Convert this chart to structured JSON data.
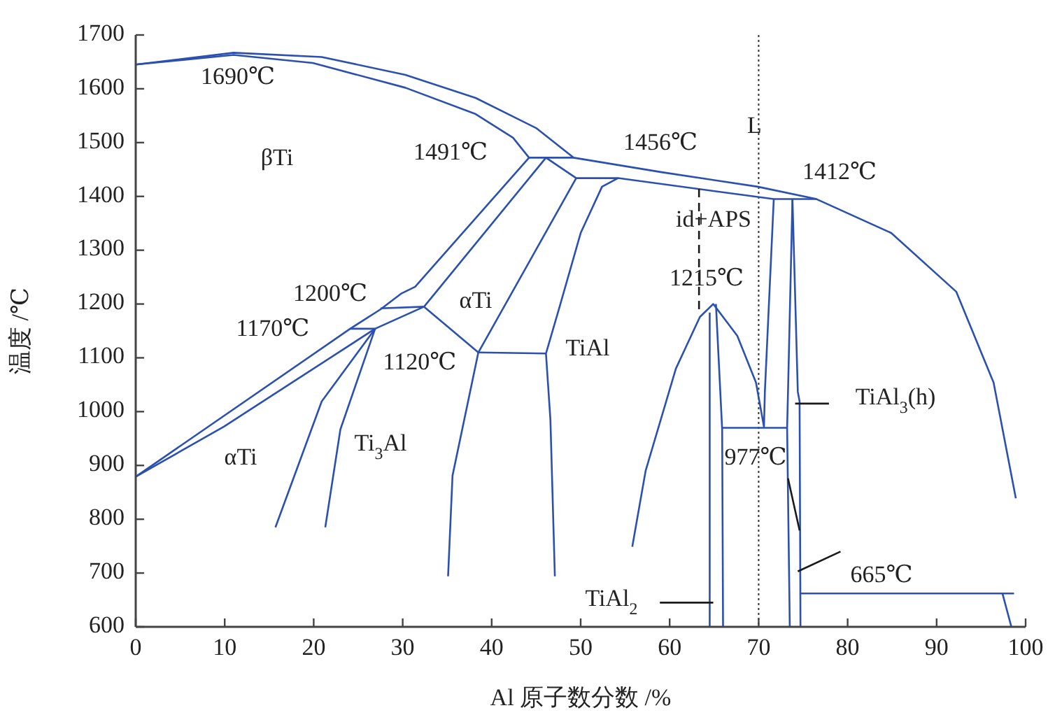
{
  "chart_data": {
    "type": "line",
    "xlabel": "Al 原子数分数 /%",
    "ylabel": "温度 /℃",
    "xlim": [
      0,
      100
    ],
    "ylim": [
      600,
      1700
    ],
    "xticks": [
      0,
      10,
      20,
      30,
      40,
      50,
      60,
      70,
      80,
      90,
      100
    ],
    "yticks": [
      600,
      700,
      800,
      900,
      1000,
      1100,
      1200,
      1300,
      1400,
      1500,
      1600,
      1700
    ],
    "grid": false,
    "line_style": "solid",
    "series": [
      {
        "color": "#2b50b0",
        "x": [
          0,
          11,
          20.9,
          30.3,
          38.2,
          45.0,
          49.2,
          59.1,
          69.9,
          76.5,
          84.9,
          92.2,
          96.4,
          98.9
        ],
        "values": [
          1645,
          1667,
          1659,
          1626,
          1583,
          1527,
          1472,
          1445,
          1418,
          1395,
          1332,
          1223,
          1054,
          839
        ]
      },
      {
        "color": "#2b50b0",
        "x": [
          0,
          11,
          19.9,
          30.3,
          38.2,
          42.4,
          44.2,
          49.2
        ],
        "values": [
          1645,
          1663,
          1648,
          1602,
          1553,
          1509,
          1472,
          1472
        ]
      },
      {
        "color": "#2b50b0",
        "x": [
          46.1,
          49.5,
          54.2,
          71.7,
          76.5
        ],
        "values": [
          1472,
          1434,
          1434,
          1395,
          1395
        ]
      },
      {
        "color": "#2b50b0",
        "x": [
          54.2,
          52.4,
          50.0,
          47.6,
          46.1,
          46.6,
          47.1
        ],
        "values": [
          1434,
          1418,
          1332,
          1193,
          1108,
          985,
          694
        ]
      },
      {
        "color": "#2b50b0",
        "x": [
          44.2,
          31.4,
          29.8,
          27.5,
          24.1,
          0
        ],
        "values": [
          1472,
          1232,
          1219,
          1190,
          1154,
          879
        ]
      },
      {
        "color": "#2b50b0",
        "x": [
          46.1,
          32.4,
          26.9,
          9.9,
          0
        ],
        "values": [
          1472,
          1195,
          1154,
          972,
          879
        ]
      },
      {
        "color": "#2b50b0",
        "x": [
          27.5,
          32.4
        ],
        "values": [
          1192,
          1195
        ]
      },
      {
        "color": "#2b50b0",
        "x": [
          24.1,
          26.9
        ],
        "values": [
          1154,
          1154
        ]
      },
      {
        "color": "#2b50b0",
        "x": [
          32.4,
          38.5
        ],
        "values": [
          1195,
          1110
        ]
      },
      {
        "color": "#2b50b0",
        "x": [
          49.5,
          38.5,
          35.6,
          35.1
        ],
        "values": [
          1434,
          1110,
          881,
          694
        ]
      },
      {
        "color": "#2b50b0",
        "x": [
          38.5,
          46.1
        ],
        "values": [
          1110,
          1108
        ]
      },
      {
        "color": "#2b50b0",
        "x": [
          26.9,
          20.9,
          15.7
        ],
        "values": [
          1154,
          1019,
          785
        ]
      },
      {
        "color": "#2b50b0",
        "x": [
          26.9,
          23.0,
          21.3
        ],
        "values": [
          1154,
          967,
          785
        ]
      },
      {
        "color": "#2b50b0",
        "x": [
          55.8,
          57.3,
          60.7,
          63.4,
          64.9,
          67.6,
          69.7,
          70.6,
          70.7,
          71.7
        ],
        "values": [
          749,
          890,
          1080,
          1176,
          1200,
          1141,
          1054,
          972,
          1037,
          1395
        ]
      },
      {
        "color": "#2b50b0",
        "x": [
          64.5,
          64.5
        ],
        "values": [
          1184,
          600
        ]
      },
      {
        "color": "#2b50b0",
        "x": [
          65.2,
          65.9,
          66.0
        ],
        "values": [
          1200,
          967,
          600
        ]
      },
      {
        "color": "#2b50b0",
        "x": [
          65.9,
          73.2
        ],
        "values": [
          970,
          970
        ]
      },
      {
        "color": "#2b50b0",
        "x": [
          73.8,
          73.3,
          73.2,
          73.5
        ],
        "values": [
          1395,
          1037,
          970,
          600
        ]
      },
      {
        "color": "#2b50b0",
        "x": [
          73.8,
          74.4,
          74.6,
          74.7
        ],
        "values": [
          1395,
          1037,
          1019,
          600
        ]
      },
      {
        "color": "#2b50b0",
        "x": [
          74.6,
          98.7
        ],
        "values": [
          662,
          662
        ]
      },
      {
        "color": "#2b50b0",
        "x": [
          97.4,
          98.4
        ],
        "values": [
          662,
          600
        ]
      },
      {
        "color": "#1a1a1a",
        "x": [
          73.3,
          74.6
        ],
        "values": [
          876,
          779
        ]
      },
      {
        "color": "#1a1a1a",
        "x": [
          74.1,
          77.9
        ],
        "values": [
          1015,
          1015
        ]
      },
      {
        "color": "#1a1a1a",
        "x": [
          74.4,
          79.2
        ],
        "values": [
          703,
          740
        ]
      },
      {
        "color": "#1a1a1a",
        "x": [
          58.9,
          64.9
        ],
        "values": [
          645,
          645
        ]
      },
      {
        "color": "#1a1a1a",
        "line_style": "dashed",
        "x": [
          63.3,
          63.3
        ],
        "values": [
          1414,
          1184
        ]
      }
    ],
    "ref_lines": [
      {
        "axis": "x",
        "value": 70,
        "label": "L",
        "color": "#333333",
        "line_style": "dotted"
      }
    ],
    "annotations": [
      "1690℃",
      "βTi",
      "1491℃",
      "1456℃",
      "1412℃",
      "id+APS",
      "1215℃",
      "1200℃",
      "1170℃",
      "αTi",
      "1120℃",
      "TiAl",
      "TiAl$_{3}$(h)",
      "977℃",
      "αTi",
      "Ti$_{3}$Al",
      "665℃",
      "TiAl$_{2}$"
    ]
  }
}
